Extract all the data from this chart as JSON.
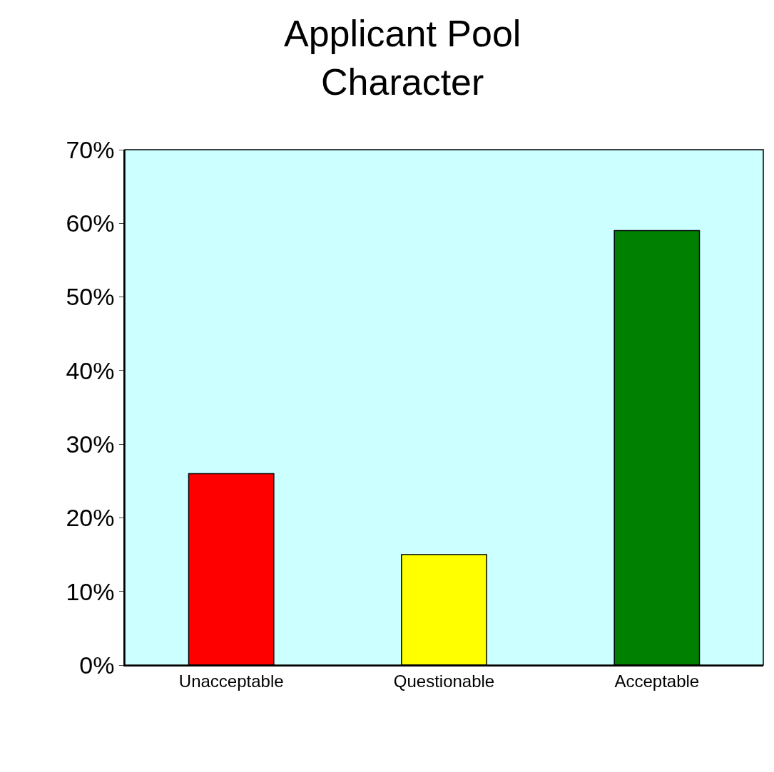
{
  "chart_data": {
    "type": "bar",
    "title": "Applicant Pool\nCharacter",
    "categories": [
      "Unacceptable",
      "Questionable",
      "Acceptable"
    ],
    "values": [
      26,
      15,
      59
    ],
    "colors": [
      "#ff0000",
      "#ffff00",
      "#008000"
    ],
    "ylim": [
      0,
      70
    ],
    "yticks": [
      {
        "value": 0,
        "label": "0%"
      },
      {
        "value": 10,
        "label": "10%"
      },
      {
        "value": 20,
        "label": "20%"
      },
      {
        "value": 30,
        "label": "30%"
      },
      {
        "value": 40,
        "label": "40%"
      },
      {
        "value": 50,
        "label": "50%"
      },
      {
        "value": 60,
        "label": "60%"
      },
      {
        "value": 70,
        "label": "70%"
      }
    ],
    "grid": false,
    "legend": false
  }
}
